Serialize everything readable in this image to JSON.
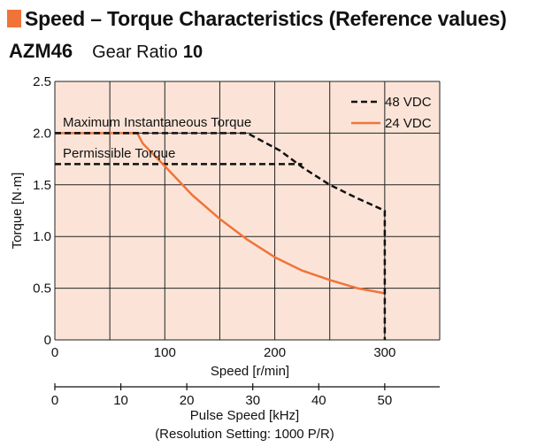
{
  "header": {
    "section_title": "Speed – Torque Characteristics (Reference values)",
    "model": "AZM46",
    "gear_ratio_label": "Gear Ratio",
    "gear_ratio_value": "10"
  },
  "colors": {
    "accent": "#f0743a",
    "plot_background": "#fbe4d7",
    "series_48": "#111111",
    "series_24": "#f0743a"
  },
  "chart_data": {
    "type": "line",
    "ylabel": "Torque [N·m]",
    "xlabel": "Speed [r/min]",
    "ylim": [
      0,
      2.5
    ],
    "xlim": [
      0,
      350
    ],
    "y_ticks": [
      0,
      0.5,
      1.0,
      1.5,
      2.0,
      2.5
    ],
    "y_tick_labels": [
      "0",
      "0.5",
      "1.0",
      "1.5",
      "2.0",
      "2.5"
    ],
    "x_ticks": [
      0,
      100,
      200,
      300
    ],
    "x_tick_labels": [
      "0",
      "100",
      "200",
      "300"
    ],
    "x_grid": [
      0,
      50,
      100,
      150,
      200,
      250,
      300,
      350
    ],
    "secondary_axis": {
      "label_line1": "Pulse Speed [kHz]",
      "label_line2": "(Resolution Setting: 1000 P/R)",
      "ticks": [
        0,
        10,
        20,
        30,
        40,
        50
      ],
      "tick_labels": [
        "0",
        "10",
        "20",
        "30",
        "40",
        "50"
      ],
      "range": [
        0,
        58.333
      ]
    },
    "annotations": [
      "Maximum Instantaneous Torque",
      "Permissible Torque"
    ],
    "legend_position": "top-right",
    "series": [
      {
        "name": "48 VDC",
        "style": "dashed",
        "x": [
          0,
          175,
          205,
          225,
          250,
          275,
          300,
          300
        ],
        "y": [
          2.0,
          2.0,
          1.83,
          1.67,
          1.5,
          1.37,
          1.25,
          0
        ]
      },
      {
        "name": "24 VDC",
        "style": "solid",
        "x": [
          0,
          75,
          80,
          100,
          125,
          150,
          175,
          200,
          225,
          250,
          275,
          300,
          300
        ],
        "y": [
          2.0,
          2.0,
          1.9,
          1.68,
          1.4,
          1.17,
          0.97,
          0.8,
          0.67,
          0.58,
          0.5,
          0.45,
          0
        ],
        "dashed_segments_x": [
          [
            300,
            300
          ]
        ]
      },
      {
        "name": "Maximum Instantaneous Torque",
        "style": "dashed",
        "x": [
          0,
          75
        ],
        "y": [
          2.0,
          2.0
        ]
      },
      {
        "name": "Permissible Torque",
        "style": "dashed",
        "x": [
          0,
          225
        ],
        "y": [
          1.7,
          1.7
        ]
      }
    ]
  }
}
